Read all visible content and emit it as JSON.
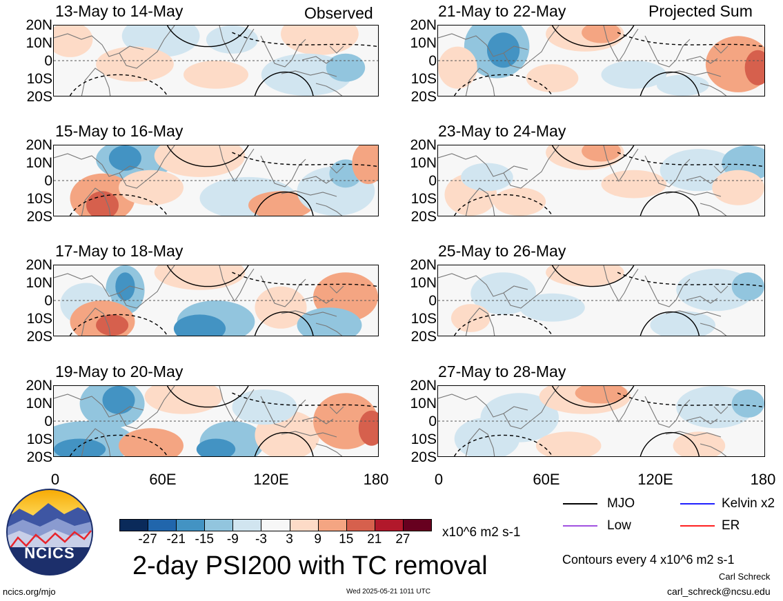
{
  "top_labels": {
    "left": "Observed",
    "right": "Projected Sum"
  },
  "lat_labels": [
    "20N",
    "10N",
    "0",
    "10S",
    "20S"
  ],
  "lon_labels": [
    "0",
    "60E",
    "120E",
    "180"
  ],
  "panels": [
    {
      "title": "13-May to 14-May"
    },
    {
      "title": "21-May to 22-May"
    },
    {
      "title": "15-May to 16-May"
    },
    {
      "title": "23-May to 24-May"
    },
    {
      "title": "17-May to 18-May"
    },
    {
      "title": "25-May to 26-May"
    },
    {
      "title": "19-May to 20-May"
    },
    {
      "title": "27-May to 28-May"
    }
  ],
  "legend": {
    "items": [
      {
        "label": "MJO",
        "color": "#000000"
      },
      {
        "label": "Kelvin x2",
        "color": "#1f1fff"
      },
      {
        "label": "Low",
        "color": "#a050e0"
      },
      {
        "label": "ER",
        "color": "#ff2020"
      }
    ]
  },
  "colorbar": {
    "colors": [
      "#0a2a5a",
      "#2166ac",
      "#4393c3",
      "#92c5de",
      "#d1e5f0",
      "#f7f7f7",
      "#fddbc7",
      "#f4a582",
      "#d6604d",
      "#b2182b",
      "#67001f"
    ],
    "ticks": [
      "-27",
      "-21",
      "-15",
      "-9",
      "-3",
      "3",
      "9",
      "15",
      "21",
      "27"
    ],
    "unit": "x10^6 m2 s-1"
  },
  "main_title": "2-day PSI200 with TC removal",
  "contour_note": "Contours every 4 x10^6 m2 s-1",
  "logo_text": "NCICS",
  "footer": {
    "left": "ncics.org/mjo",
    "center": "Wed 2025-05-21 1011 UTC",
    "author": "Carl Schreck",
    "email": "carl_schreck@ncsu.edu"
  },
  "chart_data": {
    "type": "heatmap",
    "title": "2-day PSI200 with TC removal",
    "xlabel": "",
    "ylabel": "",
    "xlim": [
      0,
      180
    ],
    "ylim": [
      -20,
      20
    ],
    "x_ticks": [
      "0",
      "60E",
      "120E",
      "180"
    ],
    "y_ticks": [
      "20N",
      "10N",
      "0",
      "10S",
      "20S"
    ],
    "contour_interval": 4,
    "units": "x10^6 m2 s-1",
    "color_levels": [
      -27,
      -21,
      -15,
      -9,
      -3,
      3,
      9,
      15,
      21,
      27
    ],
    "panels": [
      "13-May to 14-May",
      "21-May to 22-May",
      "15-May to 16-May",
      "23-May to 24-May",
      "17-May to 18-May",
      "25-May to 26-May",
      "19-May to 20-May",
      "27-May to 28-May"
    ]
  }
}
